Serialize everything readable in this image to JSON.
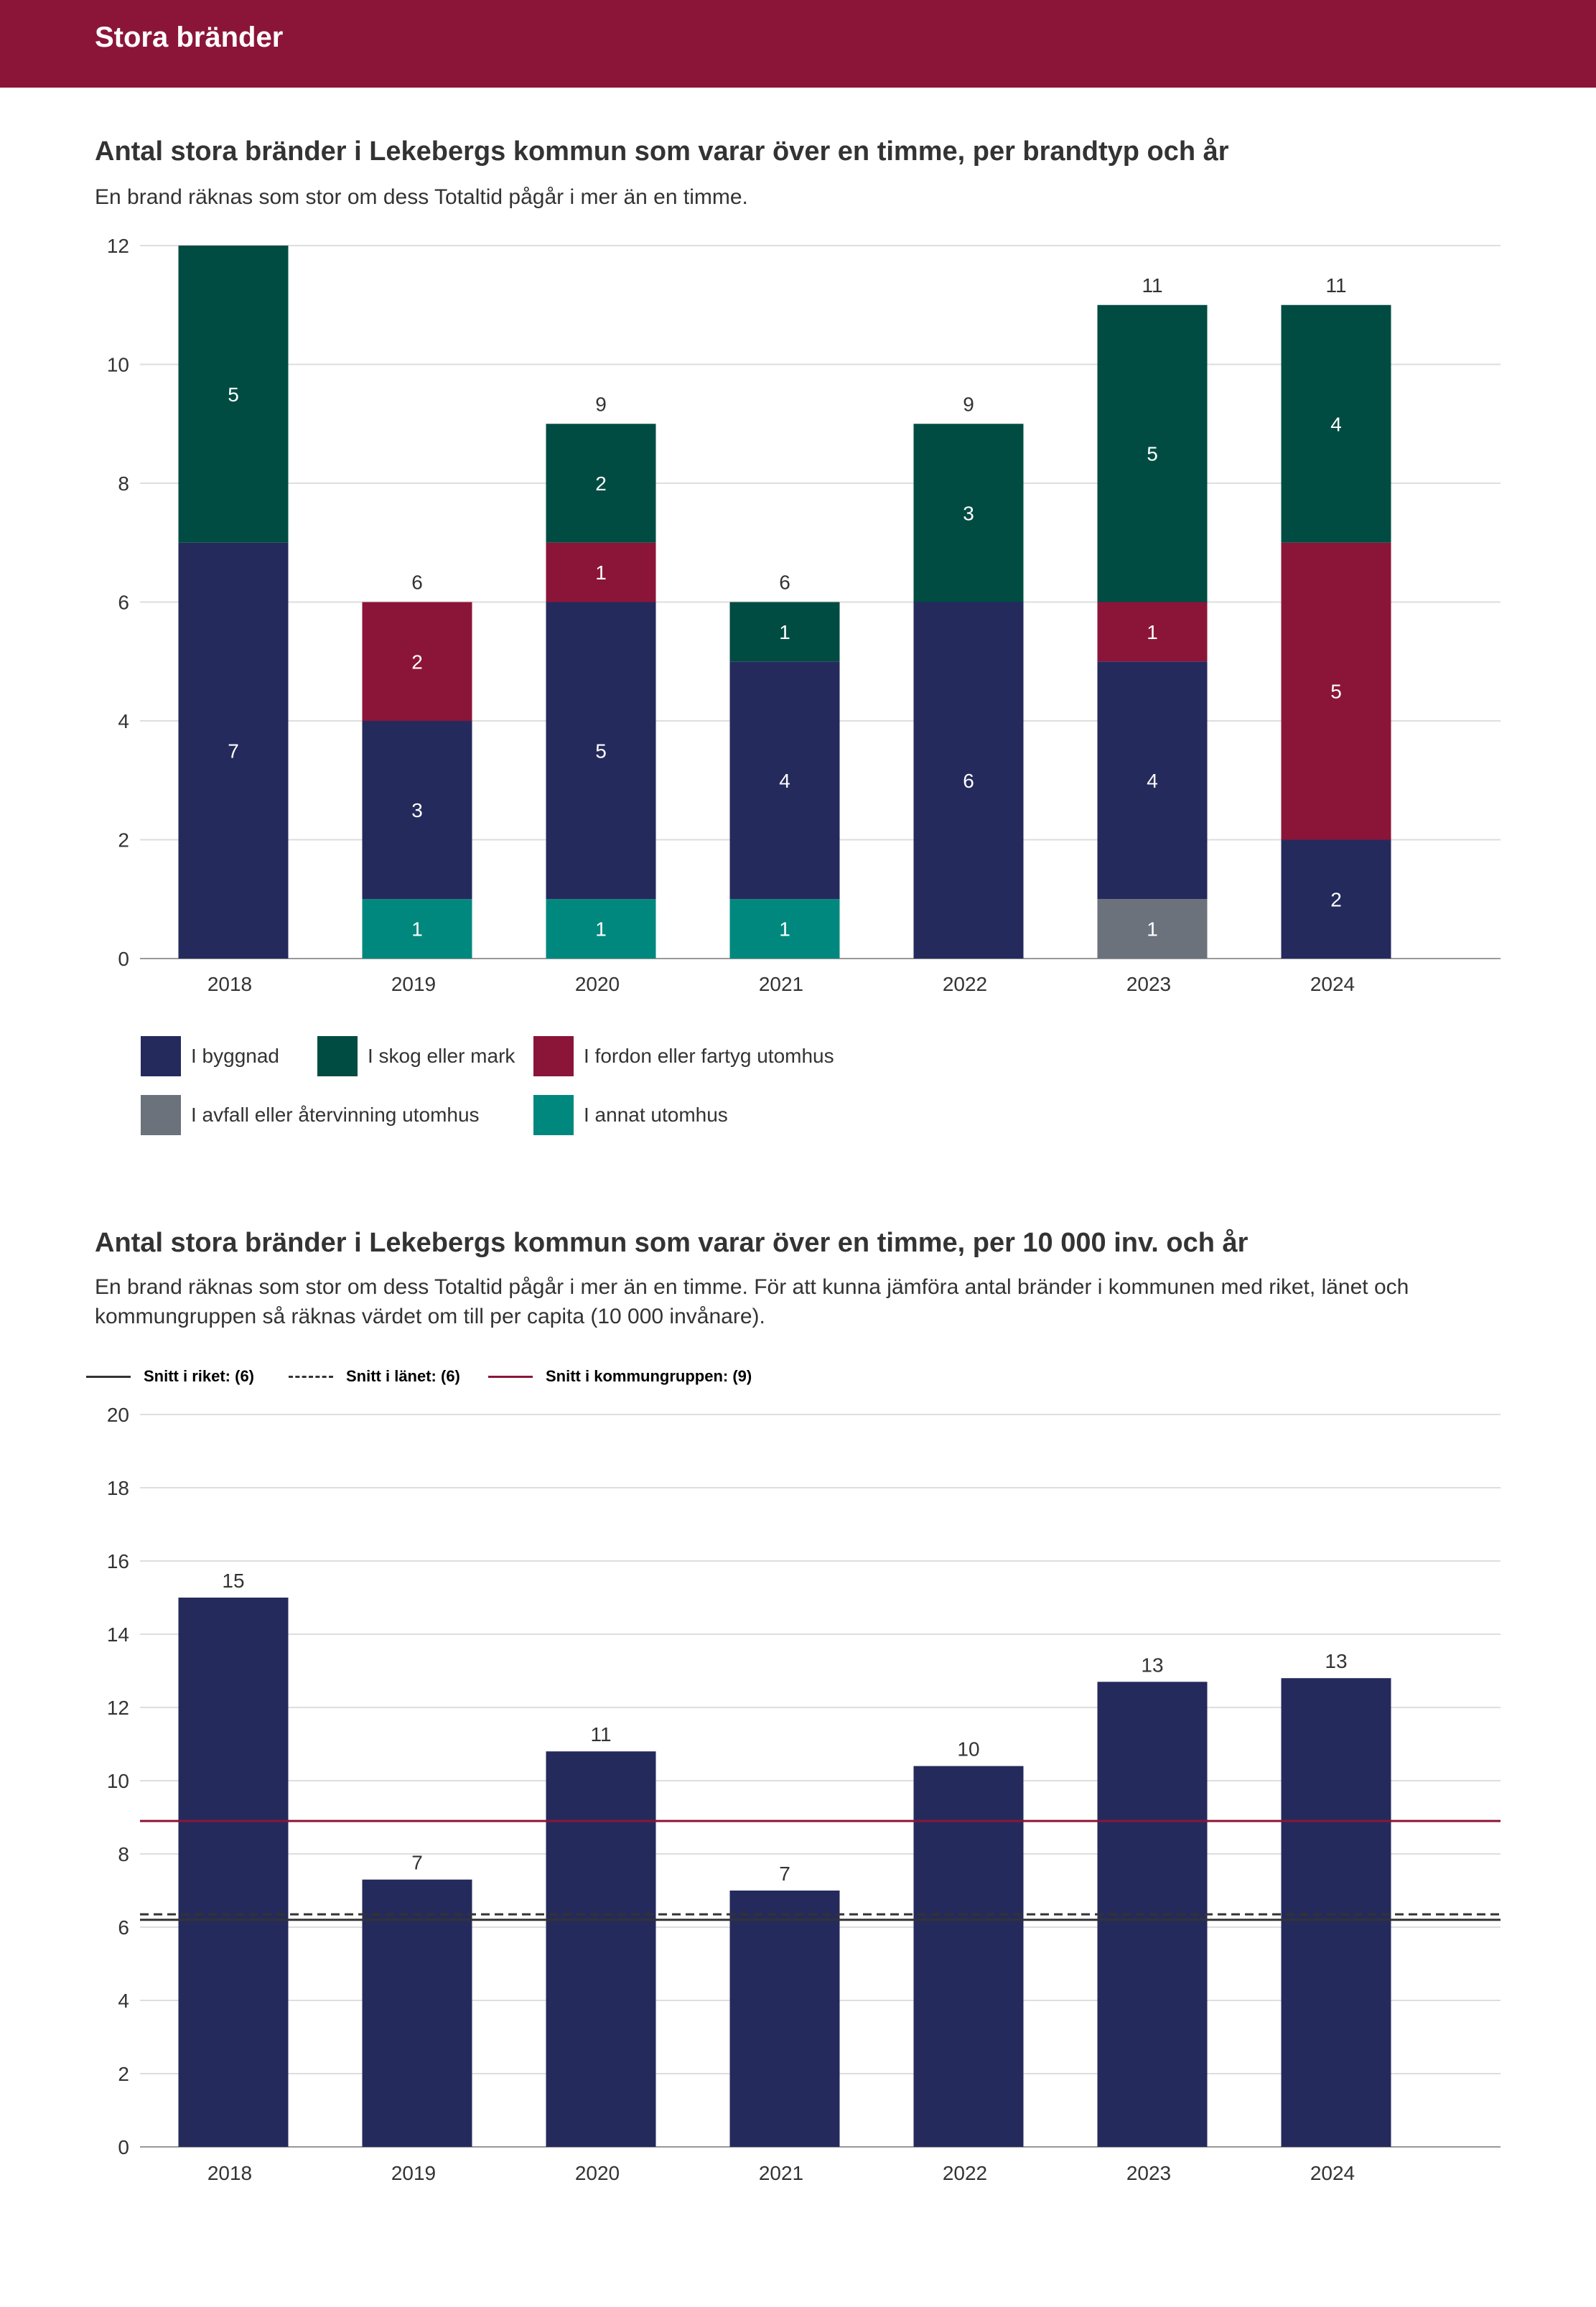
{
  "header": {
    "title": "Stora bränder"
  },
  "chart1": {
    "title": "Antal stora bränder i Lekebergs kommun som varar över en timme, per brandtyp och år",
    "subtitle": "En brand räknas som stor om dess Totaltid pågår i mer än en timme."
  },
  "chart2": {
    "title": "Antal stora bränder i Lekebergs kommun som varar över en timme, per 10 000 inv. och år",
    "subtitle": "En brand räknas som stor om dess Totaltid pågår i mer än en timme. För att kunna jämföra antal bränder i kommunen med riket, länet och kommungruppen så räknas värdet om till per capita (10 000 invånare)."
  },
  "chart_data": [
    {
      "type": "bar",
      "stacked": true,
      "title": "Antal stora bränder i Lekebergs kommun som varar över en timme, per brandtyp och år",
      "categories": [
        "2018",
        "2019",
        "2020",
        "2021",
        "2022",
        "2023",
        "2024"
      ],
      "ylim": [
        0,
        12
      ],
      "yticks": [
        "0",
        "2",
        "4",
        "6",
        "8",
        "10",
        "12"
      ],
      "series": [
        {
          "name": "I annat utomhus",
          "color": "#00887f",
          "values": [
            0,
            1,
            1,
            1,
            0,
            0,
            0
          ]
        },
        {
          "name": "I avfall eller återvinning utomhus",
          "color": "#6b727c",
          "values": [
            0,
            0,
            0,
            0,
            0,
            1,
            0
          ]
        },
        {
          "name": "I byggnad",
          "color": "#252a5c",
          "values": [
            7,
            3,
            5,
            4,
            6,
            4,
            2
          ]
        },
        {
          "name": "I fordon eller fartyg utomhus",
          "color": "#8b1538",
          "values": [
            0,
            2,
            1,
            0,
            0,
            1,
            5
          ]
        },
        {
          "name": "I skog eller mark",
          "color": "#004c42",
          "values": [
            5,
            0,
            2,
            1,
            3,
            5,
            4
          ]
        }
      ],
      "totals": [
        "",
        "6",
        "9",
        "6",
        "9",
        "11",
        "11"
      ],
      "legend": [
        {
          "name": "I byggnad",
          "color": "#252a5c"
        },
        {
          "name": "I skog eller mark",
          "color": "#004c42"
        },
        {
          "name": "I fordon eller fartyg utomhus",
          "color": "#8b1538"
        },
        {
          "name": "I avfall eller återvinning utomhus",
          "color": "#6b727c"
        },
        {
          "name": "I annat utomhus",
          "color": "#00887f"
        }
      ],
      "legend_position": "bottom-left"
    },
    {
      "type": "bar",
      "title": "Antal stora bränder i Lekebergs kommun som varar över en timme, per 10 000 inv. och år",
      "categories": [
        "2018",
        "2019",
        "2020",
        "2021",
        "2022",
        "2023",
        "2024"
      ],
      "values": [
        15.0,
        7.3,
        10.8,
        7.0,
        10.4,
        12.7,
        12.8
      ],
      "labels": [
        "15",
        "7",
        "11",
        "7",
        "10",
        "13",
        "13"
      ],
      "color": "#252a5c",
      "ylim": [
        0,
        20
      ],
      "yticks": [
        "0",
        "2",
        "4",
        "6",
        "8",
        "10",
        "12",
        "14",
        "16",
        "18",
        "20"
      ],
      "reference_lines": [
        {
          "label": "Snitt i riket: (6)",
          "value": 6.2,
          "color": "#333333",
          "style": "solid"
        },
        {
          "label": "Snitt i länet: (6)",
          "value": 6.35,
          "color": "#333333",
          "style": "dashed"
        },
        {
          "label": "Snitt i kommungruppen: (9)",
          "value": 8.9,
          "color": "#8b1538",
          "style": "solid"
        }
      ],
      "legend_position": "top-left"
    }
  ]
}
